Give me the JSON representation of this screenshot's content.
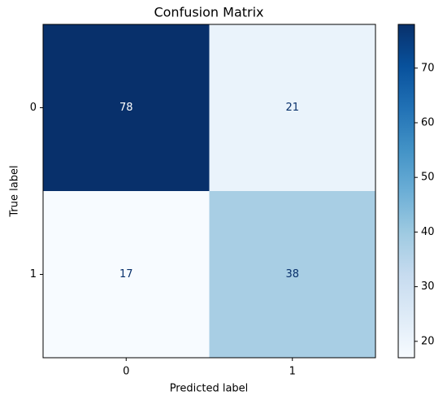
{
  "chart_data": {
    "type": "heatmap",
    "title": "Confusion Matrix",
    "x_label": "Predicted label",
    "y_label": "True label",
    "x_categories": [
      "0",
      "1"
    ],
    "y_categories": [
      "0",
      "1"
    ],
    "values": [
      [
        78,
        21
      ],
      [
        17,
        38
      ]
    ],
    "colormap": "Blues",
    "zlim": [
      17,
      78
    ],
    "zticks": [
      20,
      30,
      40,
      50,
      60,
      70
    ],
    "colorbar": true
  }
}
